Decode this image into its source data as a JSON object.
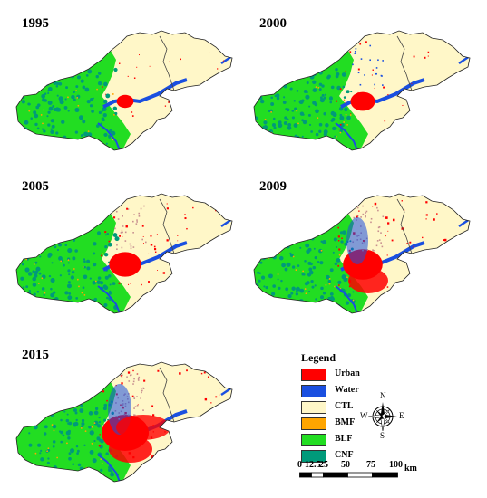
{
  "panels": [
    {
      "year": "1995",
      "urban_level": 1
    },
    {
      "year": "2000",
      "urban_level": 2
    },
    {
      "year": "2005",
      "urban_level": 3
    },
    {
      "year": "2009",
      "urban_level": 4
    },
    {
      "year": "2015",
      "urban_level": 5
    }
  ],
  "legend": {
    "title": "Legend",
    "items": [
      {
        "label": "Urban",
        "color": "#ff0000"
      },
      {
        "label": "Water",
        "color": "#1a4fe0"
      },
      {
        "label": "CTL",
        "color": "#fff7c8"
      },
      {
        "label": "BMF",
        "color": "#ffa500"
      },
      {
        "label": "BLF",
        "color": "#22dd22"
      },
      {
        "label": "CNF",
        "color": "#009a7a"
      }
    ]
  },
  "compass": {
    "n": "N",
    "s": "S",
    "e": "E",
    "w": "W"
  },
  "scale": {
    "ticks": [
      "0",
      "12.5",
      "25",
      "50",
      "75",
      "100"
    ],
    "unit": "km"
  }
}
